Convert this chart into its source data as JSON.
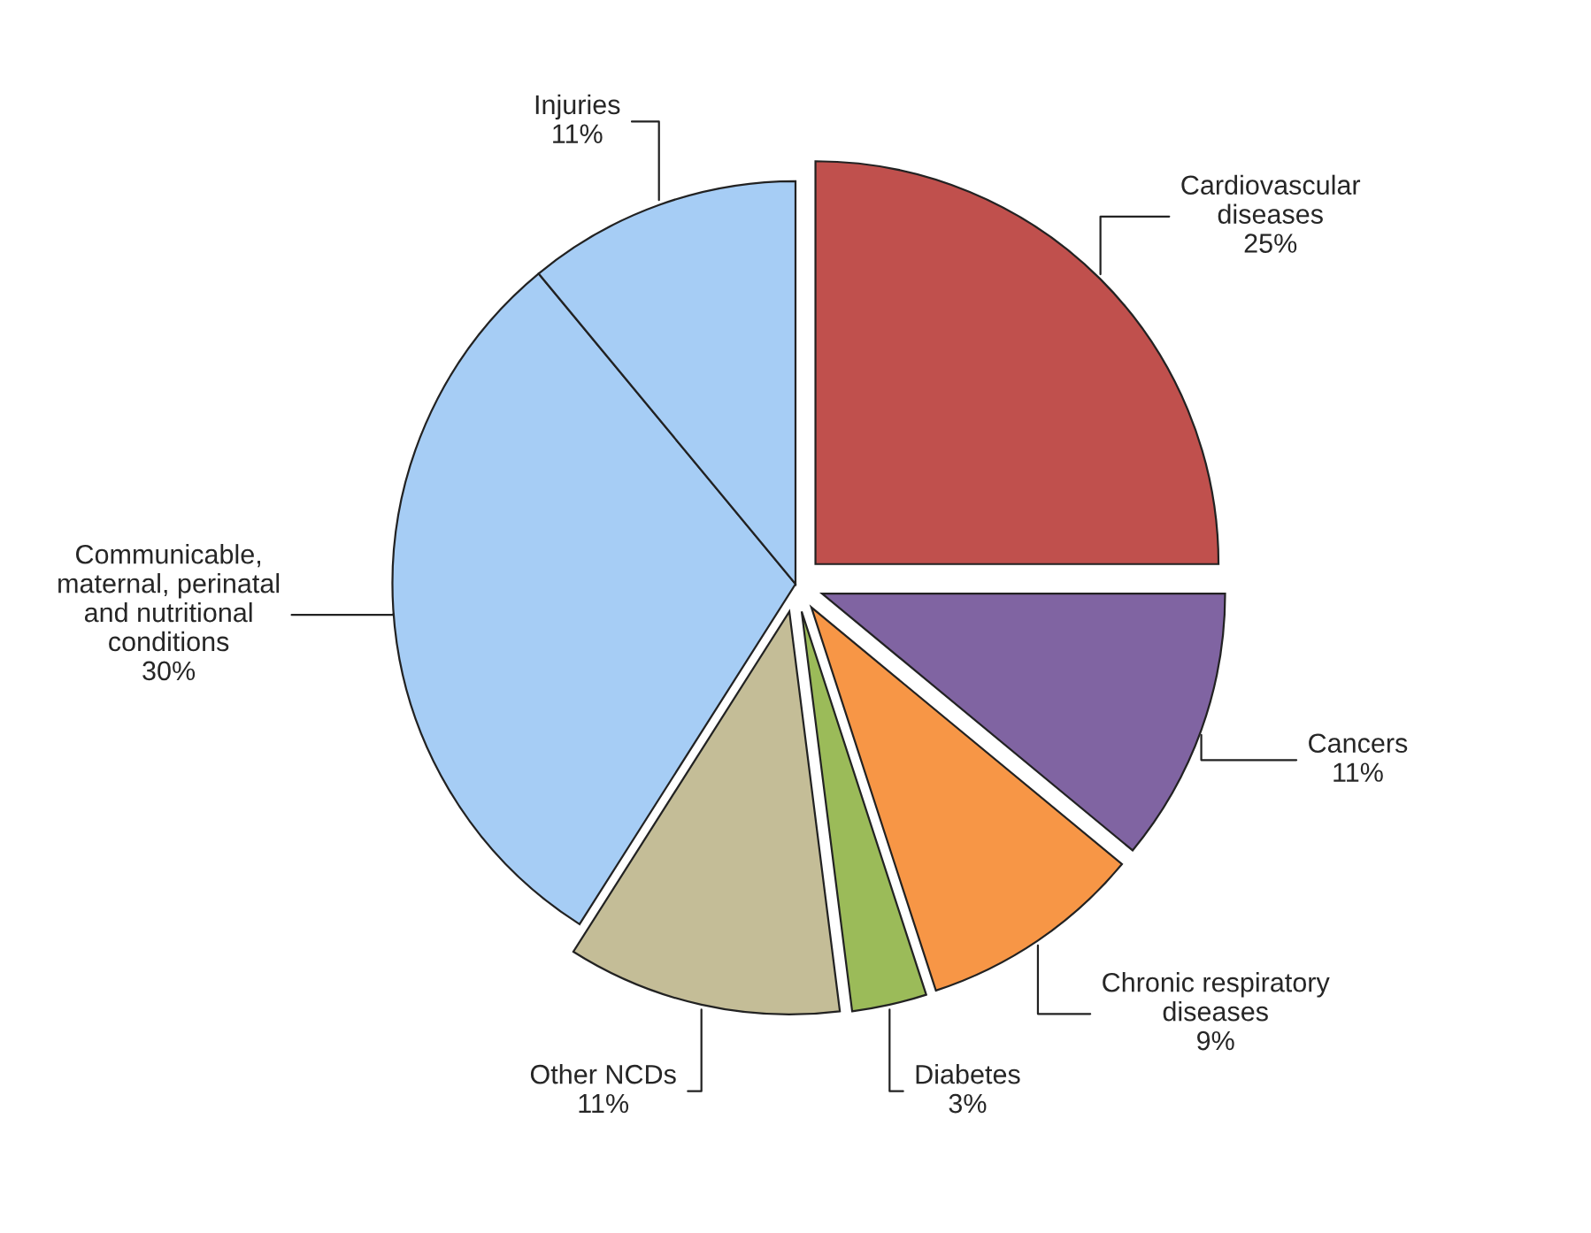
{
  "chart_data": {
    "type": "pie",
    "categories": [
      "Cardiovascular\ndiseases",
      "Cancers",
      "Chronic respiratory\ndiseases",
      "Diabetes",
      "Other NCDs",
      "Communicable,\nmaternal, perinatal\nand nutritional\nconditions",
      "Injuries"
    ],
    "values": [
      25,
      11,
      9,
      3,
      11,
      30,
      11
    ],
    "value_labels": [
      "25%",
      "11%",
      "9%",
      "3%",
      "11%",
      "30%",
      "11%"
    ],
    "colors": [
      "#c0504d",
      "#8064a2",
      "#f79646",
      "#9bbb59",
      "#c4bd97",
      "#a6cdf5",
      "#a6cdf5"
    ]
  }
}
